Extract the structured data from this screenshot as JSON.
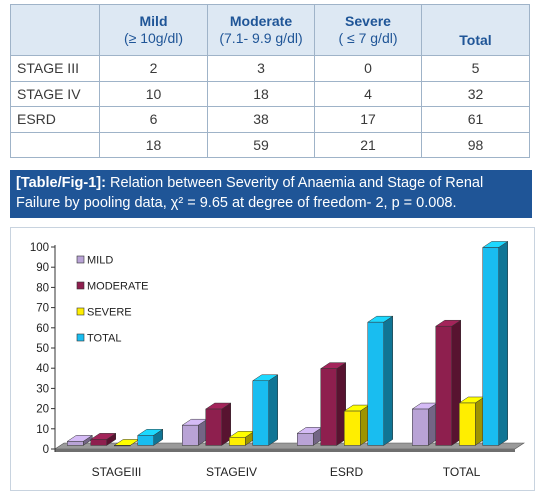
{
  "table": {
    "headers": [
      {
        "line1": "",
        "line2": ""
      },
      {
        "line1": "Mild",
        "line2": "(≥ 10g/dl)"
      },
      {
        "line1": "Moderate",
        "line2": "(7.1- 9.9 g/dl)"
      },
      {
        "line1": "Severe",
        "line2": "( ≤ 7 g/dl)"
      },
      {
        "line1": "Total",
        "line2": ""
      }
    ],
    "rows": [
      {
        "label": "STAGE III",
        "values": [
          "2",
          "3",
          "0",
          "5"
        ]
      },
      {
        "label": "STAGE IV",
        "values": [
          "10",
          "18",
          "4",
          "32"
        ]
      },
      {
        "label": "ESRD",
        "values": [
          "6",
          "38",
          "17",
          "61"
        ]
      },
      {
        "label": "",
        "values": [
          "18",
          "59",
          "21",
          "98"
        ]
      }
    ]
  },
  "caption": {
    "tag": "[Table/Fig-1]:",
    "text": " Relation between Severity of Anaemia and Stage of Renal Failure by pooling data, χ² = 9.65 at degree of freedom- 2, p = 0.008."
  },
  "chart_data": {
    "type": "bar",
    "style": "3d-column",
    "categories": [
      "STAGEIII",
      "STAGEIV",
      "ESRD",
      "TOTAL"
    ],
    "series": [
      {
        "name": "MILD",
        "color": "#b9a3d6",
        "values": [
          2,
          10,
          6,
          18
        ]
      },
      {
        "name": "MODERATE",
        "color": "#8e1f4e",
        "values": [
          3,
          18,
          38,
          59
        ]
      },
      {
        "name": "SEVERE",
        "color": "#ffee00",
        "values": [
          0,
          4,
          17,
          21
        ]
      },
      {
        "name": "TOTAL",
        "color": "#19bdf0",
        "values": [
          5,
          32,
          61,
          98
        ]
      }
    ],
    "ylim": [
      0,
      100
    ],
    "yticks": [
      0,
      10,
      20,
      30,
      40,
      50,
      60,
      70,
      80,
      90,
      100
    ],
    "legend_position": "top-left",
    "floor_color": "#8a8a8a"
  }
}
